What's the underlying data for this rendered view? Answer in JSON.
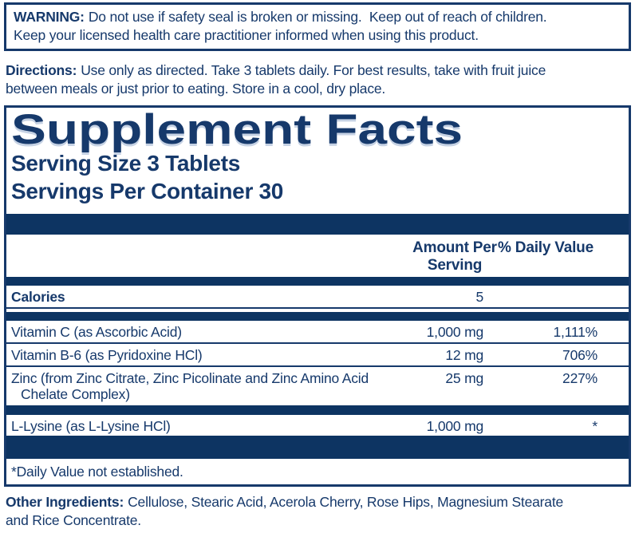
{
  "colors": {
    "ink": "#16396b",
    "bar": "#0d3462",
    "background": "#ffffff"
  },
  "warning": {
    "label": "WARNING:",
    "lines": [
      "Do not use if safety seal is broken or missing.  Keep out of reach of children.",
      "Keep your licensed health care practitioner informed when using this product."
    ]
  },
  "directions": {
    "label": "Directions:",
    "lines": [
      "Use only as directed. Take 3 tablets daily. For best results, take with fruit juice",
      "between meals or just prior to eating. Store in a cool, dry place."
    ]
  },
  "panel": {
    "title": "Supplement Facts",
    "serving_size": "Serving Size 3 Tablets",
    "servings_per_container": "Servings Per Container 30",
    "columns": {
      "amount": "Amount Per Serving",
      "daily_value": "% Daily Value"
    },
    "calories": {
      "name": "Calories",
      "amount": "5",
      "daily_value": ""
    },
    "nutrients": [
      {
        "name_lines": [
          "Vitamin C (as Ascorbic Acid)"
        ],
        "amount": "1,000 mg",
        "daily_value": "1,111%"
      },
      {
        "name_lines": [
          "Vitamin B-6 (as Pyridoxine HCl)"
        ],
        "amount": "12 mg",
        "daily_value": "706%"
      },
      {
        "name_lines": [
          "Zinc (from Zinc Citrate, Zinc Picolinate and Zinc Amino Acid",
          "Chelate Complex)"
        ],
        "amount": "25 mg",
        "daily_value": "227%"
      }
    ],
    "other_nutrients": [
      {
        "name_lines": [
          "L-Lysine (as L-Lysine HCl)"
        ],
        "amount": "1,000 mg",
        "daily_value": "*"
      }
    ],
    "footnote": "*Daily Value not established."
  },
  "other_ingredients": {
    "label": "Other Ingredients:",
    "lines": [
      "Cellulose, Stearic Acid, Acerola Cherry, Rose Hips, Magnesium Stearate",
      "and Rice Concentrate."
    ]
  }
}
